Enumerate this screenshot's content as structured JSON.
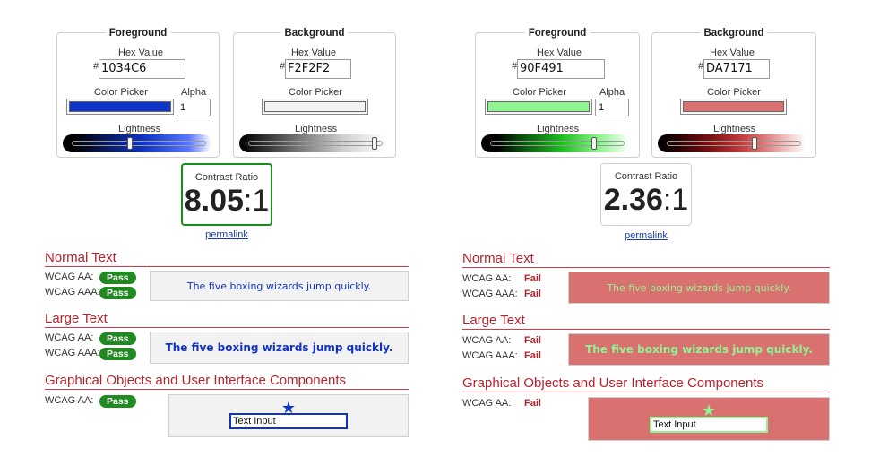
{
  "left": {
    "foreground": {
      "title": "Foreground",
      "hex_label": "Hex Value",
      "hash": "#",
      "hex_value": "1034C6",
      "picker_label": "Color Picker",
      "alpha_label": "Alpha",
      "alpha_value": "1",
      "lightness_label": "Lightness",
      "color": "#1034C6",
      "lightness": 0.44
    },
    "background": {
      "title": "Background",
      "hex_label": "Hex Value",
      "hash": "#",
      "hex_value": "F2F2F2",
      "picker_label": "Color Picker",
      "lightness_label": "Lightness",
      "color": "#F2F2F2",
      "lightness": 0.95
    },
    "contrast": {
      "label": "Contrast Ratio",
      "ratio": "8.05",
      "suffix": ":1",
      "status": "pass"
    },
    "permalink": "permalink",
    "normal_text": {
      "title": "Normal Text",
      "aa_label": "WCAG AA:",
      "aa_result": "Pass",
      "aaa_label": "WCAG AAA:",
      "aaa_result": "Pass",
      "sample": "The five boxing wizards jump quickly."
    },
    "large_text": {
      "title": "Large Text",
      "aa_label": "WCAG AA:",
      "aa_result": "Pass",
      "aaa_label": "WCAG AAA:",
      "aaa_result": "Pass",
      "sample": "The five boxing wizards jump quickly."
    },
    "graphical": {
      "title": "Graphical Objects and User Interface Components",
      "aa_label": "WCAG AA:",
      "aa_result": "Pass",
      "star": "★",
      "input_text": "Text Input"
    }
  },
  "right": {
    "foreground": {
      "title": "Foreground",
      "hex_label": "Hex Value",
      "hash": "#",
      "hex_value": "90F491",
      "picker_label": "Color Picker",
      "alpha_label": "Alpha",
      "alpha_value": "1",
      "lightness_label": "Lightness",
      "color": "#90F491",
      "lightness": 0.76
    },
    "background": {
      "title": "Background",
      "hex_label": "Hex Value",
      "hash": "#",
      "hex_value": "DA7171",
      "picker_label": "Color Picker",
      "lightness_label": "Lightness",
      "color": "#DA7171",
      "lightness": 0.65
    },
    "contrast": {
      "label": "Contrast Ratio",
      "ratio": "2.36",
      "suffix": ":1",
      "status": "fail"
    },
    "permalink": "permalink",
    "normal_text": {
      "title": "Normal Text",
      "aa_label": "WCAG AA:",
      "aa_result": "Fail",
      "aaa_label": "WCAG AAA:",
      "aaa_result": "Fail",
      "sample": "The five boxing wizards jump quickly."
    },
    "large_text": {
      "title": "Large Text",
      "aa_label": "WCAG AA:",
      "aa_result": "Fail",
      "aaa_label": "WCAG AAA:",
      "aaa_result": "Fail",
      "sample": "The five boxing wizards jump quickly."
    },
    "graphical": {
      "title": "Graphical Objects and User Interface Components",
      "aa_label": "WCAG AA:",
      "aa_result": "Fail",
      "star": "★",
      "input_text": "Text Input"
    }
  },
  "colors": {
    "pass_green": "#1f8a1f",
    "fail_red": "#b8222c",
    "link_blue": "#1a3aa8"
  }
}
